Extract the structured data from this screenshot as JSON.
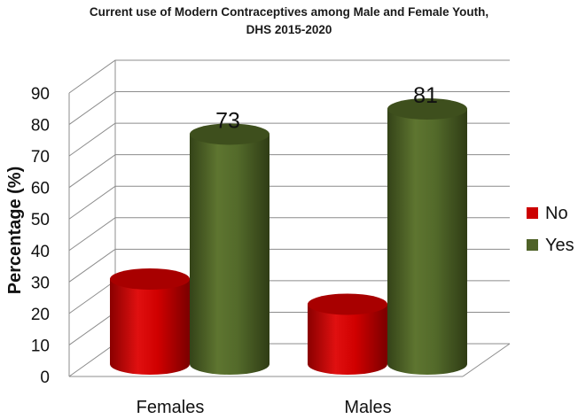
{
  "chart_data": {
    "type": "bar",
    "title": "Current use of Modern Contraceptives among Male and Female Youth,",
    "subtitle": "DHS 2015-2020",
    "ylabel": "Percentage (%)",
    "xlabel": "",
    "ylim": [
      0,
      90
    ],
    "yticks": [
      "0",
      "10",
      "20",
      "30",
      "40",
      "50",
      "60",
      "70",
      "80",
      "90"
    ],
    "categories": [
      "Females",
      "Males"
    ],
    "series": [
      {
        "name": "No",
        "values": [
          27,
          19
        ],
        "color": "#cc0000",
        "labels": [
          "",
          ""
        ]
      },
      {
        "name": "Yes",
        "values": [
          73,
          81
        ],
        "color": "#4f6228",
        "labels": [
          "73",
          "81"
        ]
      }
    ],
    "legend_position": "right",
    "grid": true,
    "style": "3d-cylinder"
  }
}
